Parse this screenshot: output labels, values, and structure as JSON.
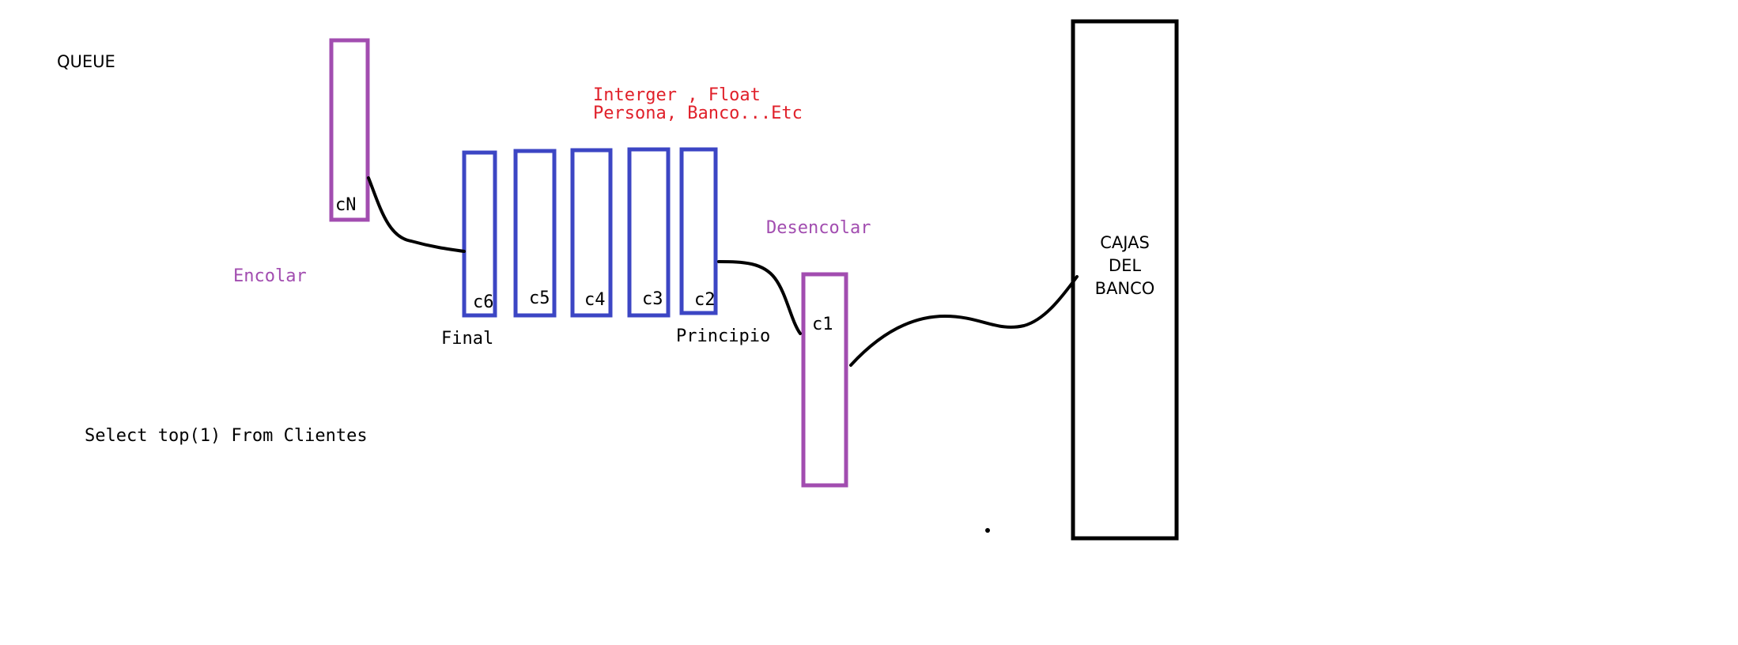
{
  "title": "QUEUE",
  "types_note": {
    "line1": "Interger , Float",
    "line2": "Persona, Banco...Etc"
  },
  "labels": {
    "encolar": "Encolar",
    "desencolar": "Desencolar",
    "final": "Final",
    "principio": "Principio",
    "sql": "Select top(1) From Clientes"
  },
  "incoming": {
    "label": "cN"
  },
  "queue": [
    {
      "label": "c6"
    },
    {
      "label": "c5"
    },
    {
      "label": "c4"
    },
    {
      "label": "c3"
    },
    {
      "label": "c2"
    }
  ],
  "outgoing": {
    "label": "c1"
  },
  "bank": {
    "line1": "CAJAS",
    "line2": "DEL",
    "line3": "BANCO"
  },
  "colors": {
    "queue_box": "#3c46c4",
    "moving_box": "#a24db0",
    "label_purple": "#a24db0",
    "label_red": "#e0202a",
    "ink": "#000000"
  }
}
